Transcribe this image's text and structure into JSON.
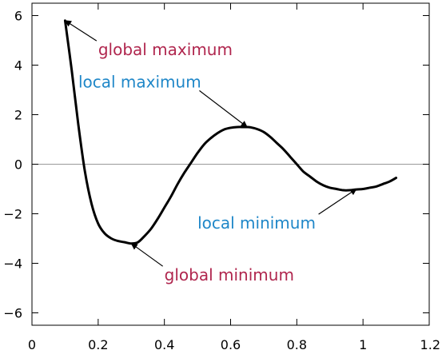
{
  "chart_data": {
    "type": "line",
    "title": "",
    "xlabel": "",
    "ylabel": "",
    "xlim": [
      0,
      1.2
    ],
    "ylim": [
      -6.5,
      6.5
    ],
    "xticks": [
      0,
      0.2,
      0.4,
      0.6,
      0.8,
      1,
      1.2
    ],
    "xtick_labels": [
      "0",
      "0.2",
      "0.4",
      "0.6",
      "0.8",
      "1",
      "1.2"
    ],
    "yticks": [
      6,
      4,
      2,
      0,
      -2,
      -4,
      -6
    ],
    "ytick_labels": [
      "6",
      "4",
      "2",
      "0",
      "−2",
      "−4",
      "−6"
    ],
    "grid": false,
    "zero_line": true,
    "series": [
      {
        "color": "#000000",
        "x": [
          0.1,
          0.12,
          0.14,
          0.16,
          0.18,
          0.2,
          0.22,
          0.24,
          0.26,
          0.28,
          0.3,
          0.32,
          0.34,
          0.36,
          0.38,
          0.4,
          0.42,
          0.44,
          0.46,
          0.48,
          0.5,
          0.52,
          0.54,
          0.56,
          0.58,
          0.6,
          0.62,
          0.64,
          0.65,
          0.66,
          0.68,
          0.7,
          0.72,
          0.74,
          0.76,
          0.78,
          0.8,
          0.82,
          0.84,
          0.86,
          0.88,
          0.9,
          0.92,
          0.94,
          0.96,
          0.98,
          1.0,
          1.02,
          1.04,
          1.06,
          1.08,
          1.1
        ],
        "y": [
          5.8,
          3.8,
          1.6,
          -0.3,
          -1.6,
          -2.4,
          -2.8,
          -3.0,
          -3.1,
          -3.15,
          -3.2,
          -3.15,
          -2.9,
          -2.6,
          -2.2,
          -1.75,
          -1.3,
          -0.8,
          -0.35,
          0.05,
          0.45,
          0.8,
          1.05,
          1.25,
          1.4,
          1.47,
          1.5,
          1.5,
          1.5,
          1.49,
          1.42,
          1.3,
          1.1,
          0.85,
          0.6,
          0.3,
          0.0,
          -0.3,
          -0.5,
          -0.7,
          -0.85,
          -0.95,
          -1.0,
          -1.05,
          -1.05,
          -1.02,
          -1.0,
          -0.95,
          -0.9,
          -0.8,
          -0.7,
          -0.55
        ]
      }
    ],
    "annotations": [
      {
        "text": "global maximum",
        "color": "#b0264e",
        "point": [
          0.1,
          5.8
        ],
        "text_at": [
          0.2,
          4.4
        ]
      },
      {
        "text": "local maximum",
        "color": "#1f87c8",
        "point": [
          0.65,
          1.5
        ],
        "text_at": [
          0.14,
          3.1
        ]
      },
      {
        "text": "local minimum",
        "color": "#1f87c8",
        "point": [
          0.98,
          -1.0
        ],
        "text_at": [
          0.5,
          -2.6
        ]
      },
      {
        "text": "global minimum",
        "color": "#b0264e",
        "point": [
          0.3,
          -3.2
        ],
        "text_at": [
          0.4,
          -4.7
        ]
      }
    ]
  }
}
